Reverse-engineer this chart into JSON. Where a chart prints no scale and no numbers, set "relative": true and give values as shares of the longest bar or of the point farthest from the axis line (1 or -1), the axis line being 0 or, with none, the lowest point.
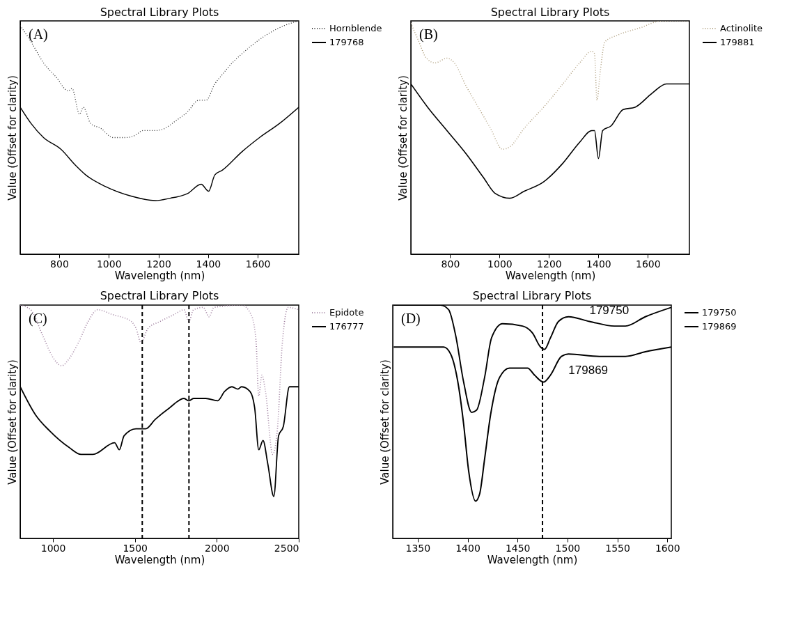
{
  "chart_data": [
    {
      "type": "line",
      "title": "Spectral Library Plots",
      "xlabel": "Wavelength (nm)",
      "ylabel": "Value (Offset for clarity)",
      "relative": true,
      "legend": "top right",
      "xlim": [
        643,
        1765
      ],
      "xticks": [
        800,
        1000,
        1200,
        1400,
        1600
      ],
      "annotations": [
        "(A)"
      ],
      "series": [
        {
          "name": "Hornblende",
          "color": "#303030",
          "line_style": "dotted",
          "x": [
            643,
            687,
            737,
            787,
            837,
            852,
            882,
            897,
            927,
            967,
            1017,
            1067,
            1107,
            1137,
            1187,
            1227,
            1267,
            1317,
            1362,
            1392,
            1427,
            1457,
            1497,
            1537,
            1607,
            1667,
            1707,
            1765
          ],
          "values": [
            0.98,
            0.91,
            0.82,
            0.76,
            0.7,
            0.71,
            0.6,
            0.63,
            0.56,
            0.54,
            0.5,
            0.5,
            0.51,
            0.53,
            0.53,
            0.54,
            0.57,
            0.61,
            0.66,
            0.66,
            0.73,
            0.77,
            0.82,
            0.86,
            0.92,
            0.96,
            0.98,
            1.0
          ]
        },
        {
          "name": "179768",
          "color": "#000000",
          "line_style": "solid",
          "x": [
            643,
            687,
            737,
            807,
            867,
            907,
            987,
            1087,
            1187,
            1247,
            1317,
            1372,
            1402,
            1427,
            1457,
            1537,
            1607,
            1687,
            1765
          ],
          "values": [
            0.63,
            0.56,
            0.5,
            0.45,
            0.38,
            0.34,
            0.29,
            0.25,
            0.23,
            0.24,
            0.26,
            0.3,
            0.27,
            0.34,
            0.36,
            0.44,
            0.5,
            0.56,
            0.63
          ]
        }
      ]
    },
    {
      "type": "line",
      "title": "Spectral Library Plots",
      "xlabel": "Wavelength (nm)",
      "ylabel": "Value (Offset for clarity)",
      "relative": true,
      "legend": "top right",
      "xlim": [
        641,
        1768
      ],
      "xticks": [
        800,
        1000,
        1200,
        1400,
        1600
      ],
      "annotations": [
        "(B)"
      ],
      "series": [
        {
          "name": "Actinolite",
          "color": "#b0a080",
          "line_style": "dotted",
          "x": [
            641,
            670,
            704,
            739,
            787,
            817,
            865,
            914,
            963,
            1012,
            1041,
            1100,
            1178,
            1256,
            1324,
            1373,
            1384,
            1394,
            1407,
            1426,
            1480,
            1568,
            1656,
            1714,
            1768
          ],
          "values": [
            0.99,
            0.92,
            0.84,
            0.82,
            0.84,
            0.82,
            0.72,
            0.63,
            0.54,
            0.45,
            0.46,
            0.54,
            0.63,
            0.73,
            0.82,
            0.87,
            0.86,
            0.66,
            0.78,
            0.91,
            0.94,
            0.97,
            1.0,
            1.0,
            1.0
          ]
        },
        {
          "name": "179881",
          "color": "#000000",
          "line_style": "solid",
          "x": [
            641,
            709,
            787,
            865,
            934,
            983,
            1041,
            1100,
            1178,
            1256,
            1324,
            1373,
            1384,
            1400,
            1417,
            1451,
            1500,
            1548,
            1617,
            1675,
            1768
          ],
          "values": [
            0.73,
            0.63,
            0.53,
            0.43,
            0.33,
            0.26,
            0.24,
            0.27,
            0.31,
            0.39,
            0.48,
            0.53,
            0.53,
            0.41,
            0.53,
            0.55,
            0.62,
            0.63,
            0.69,
            0.73,
            0.73
          ]
        }
      ]
    },
    {
      "type": "line",
      "title": "Spectral Library Plots",
      "xlabel": "Wavelength (nm)",
      "ylabel": "Value (Offset for clarity)",
      "relative": true,
      "legend": "top right",
      "xlim": [
        800,
        2500
      ],
      "xticks": [
        1000,
        1500,
        2000,
        2500
      ],
      "annotations": [
        "(C)"
      ],
      "ref_lines": [
        {
          "axis": "x",
          "value": 1545,
          "line_style": "dashed",
          "color": "#000000"
        },
        {
          "axis": "x",
          "value": 1830,
          "line_style": "dashed",
          "color": "#000000"
        }
      ],
      "series": [
        {
          "name": "Epidote",
          "color": "#a080a0",
          "line_style": "dotted",
          "x": [
            800,
            864,
            937,
            996,
            1054,
            1098,
            1156,
            1215,
            1273,
            1361,
            1478,
            1507,
            1537,
            1580,
            1654,
            1741,
            1800,
            1829,
            1858,
            1917,
            1953,
            1982,
            2151,
            2209,
            2239,
            2256,
            2275,
            2297,
            2341,
            2370,
            2399,
            2436,
            2500
          ],
          "values": [
            1.0,
            0.98,
            0.87,
            0.78,
            0.74,
            0.77,
            0.84,
            0.93,
            0.98,
            0.96,
            0.93,
            0.9,
            0.84,
            0.9,
            0.93,
            0.96,
            0.98,
            0.93,
            0.98,
            0.99,
            0.95,
            0.99,
            1.0,
            0.96,
            0.85,
            0.61,
            0.7,
            0.63,
            0.36,
            0.47,
            0.83,
            0.99,
            0.98
          ]
        },
        {
          "name": "176777",
          "color": "#000000",
          "line_style": "solid",
          "x": [
            800,
            893,
            981,
            1098,
            1171,
            1244,
            1376,
            1405,
            1434,
            1507,
            1566,
            1624,
            1712,
            1800,
            1829,
            1858,
            1932,
            2005,
            2048,
            2092,
            2129,
            2151,
            2202,
            2231,
            2256,
            2282,
            2311,
            2348,
            2377,
            2406,
            2443,
            2500
          ],
          "values": [
            0.65,
            0.53,
            0.46,
            0.39,
            0.36,
            0.36,
            0.41,
            0.38,
            0.44,
            0.47,
            0.47,
            0.51,
            0.56,
            0.6,
            0.59,
            0.6,
            0.6,
            0.59,
            0.63,
            0.65,
            0.64,
            0.65,
            0.63,
            0.56,
            0.38,
            0.42,
            0.32,
            0.18,
            0.44,
            0.48,
            0.65,
            0.65
          ]
        }
      ]
    },
    {
      "type": "line",
      "title": "Spectral Library Plots",
      "xlabel": "Wavelength (nm)",
      "ylabel": "Value (Offset for clarity)",
      "relative": true,
      "legend": "top right",
      "xlim": [
        1325,
        1604
      ],
      "xticks": [
        1350,
        1400,
        1450,
        1500,
        1550,
        1600
      ],
      "annotations": [
        "(D)",
        "179750",
        "179869"
      ],
      "ref_lines": [
        {
          "axis": "x",
          "value": 1475,
          "line_style": "dashed",
          "color": "#000000"
        }
      ],
      "series": [
        {
          "name": "179750",
          "color": "#000000",
          "line_style": "solid",
          "x": [
            1326,
            1353,
            1373,
            1381,
            1388,
            1396,
            1404,
            1409,
            1417,
            1424,
            1435,
            1455,
            1465,
            1473,
            1477,
            1483,
            1491,
            1501,
            1522,
            1547,
            1558,
            1578,
            1604
          ],
          "values": [
            1.0,
            1.0,
            1.0,
            0.98,
            0.87,
            0.67,
            0.54,
            0.55,
            0.69,
            0.86,
            0.92,
            0.91,
            0.88,
            0.82,
            0.81,
            0.86,
            0.93,
            0.95,
            0.93,
            0.91,
            0.91,
            0.95,
            0.99
          ]
        },
        {
          "name": "179869",
          "color": "#000000",
          "line_style": "solid",
          "x": [
            1326,
            1376,
            1383,
            1391,
            1396,
            1401,
            1408,
            1412,
            1417,
            1423,
            1432,
            1442,
            1460,
            1467,
            1476,
            1483,
            1494,
            1501,
            1532,
            1558,
            1578,
            1604
          ],
          "values": [
            0.82,
            0.82,
            0.79,
            0.65,
            0.49,
            0.29,
            0.16,
            0.19,
            0.34,
            0.53,
            0.69,
            0.73,
            0.73,
            0.7,
            0.67,
            0.7,
            0.78,
            0.79,
            0.78,
            0.78,
            0.8,
            0.82
          ]
        }
      ]
    }
  ]
}
